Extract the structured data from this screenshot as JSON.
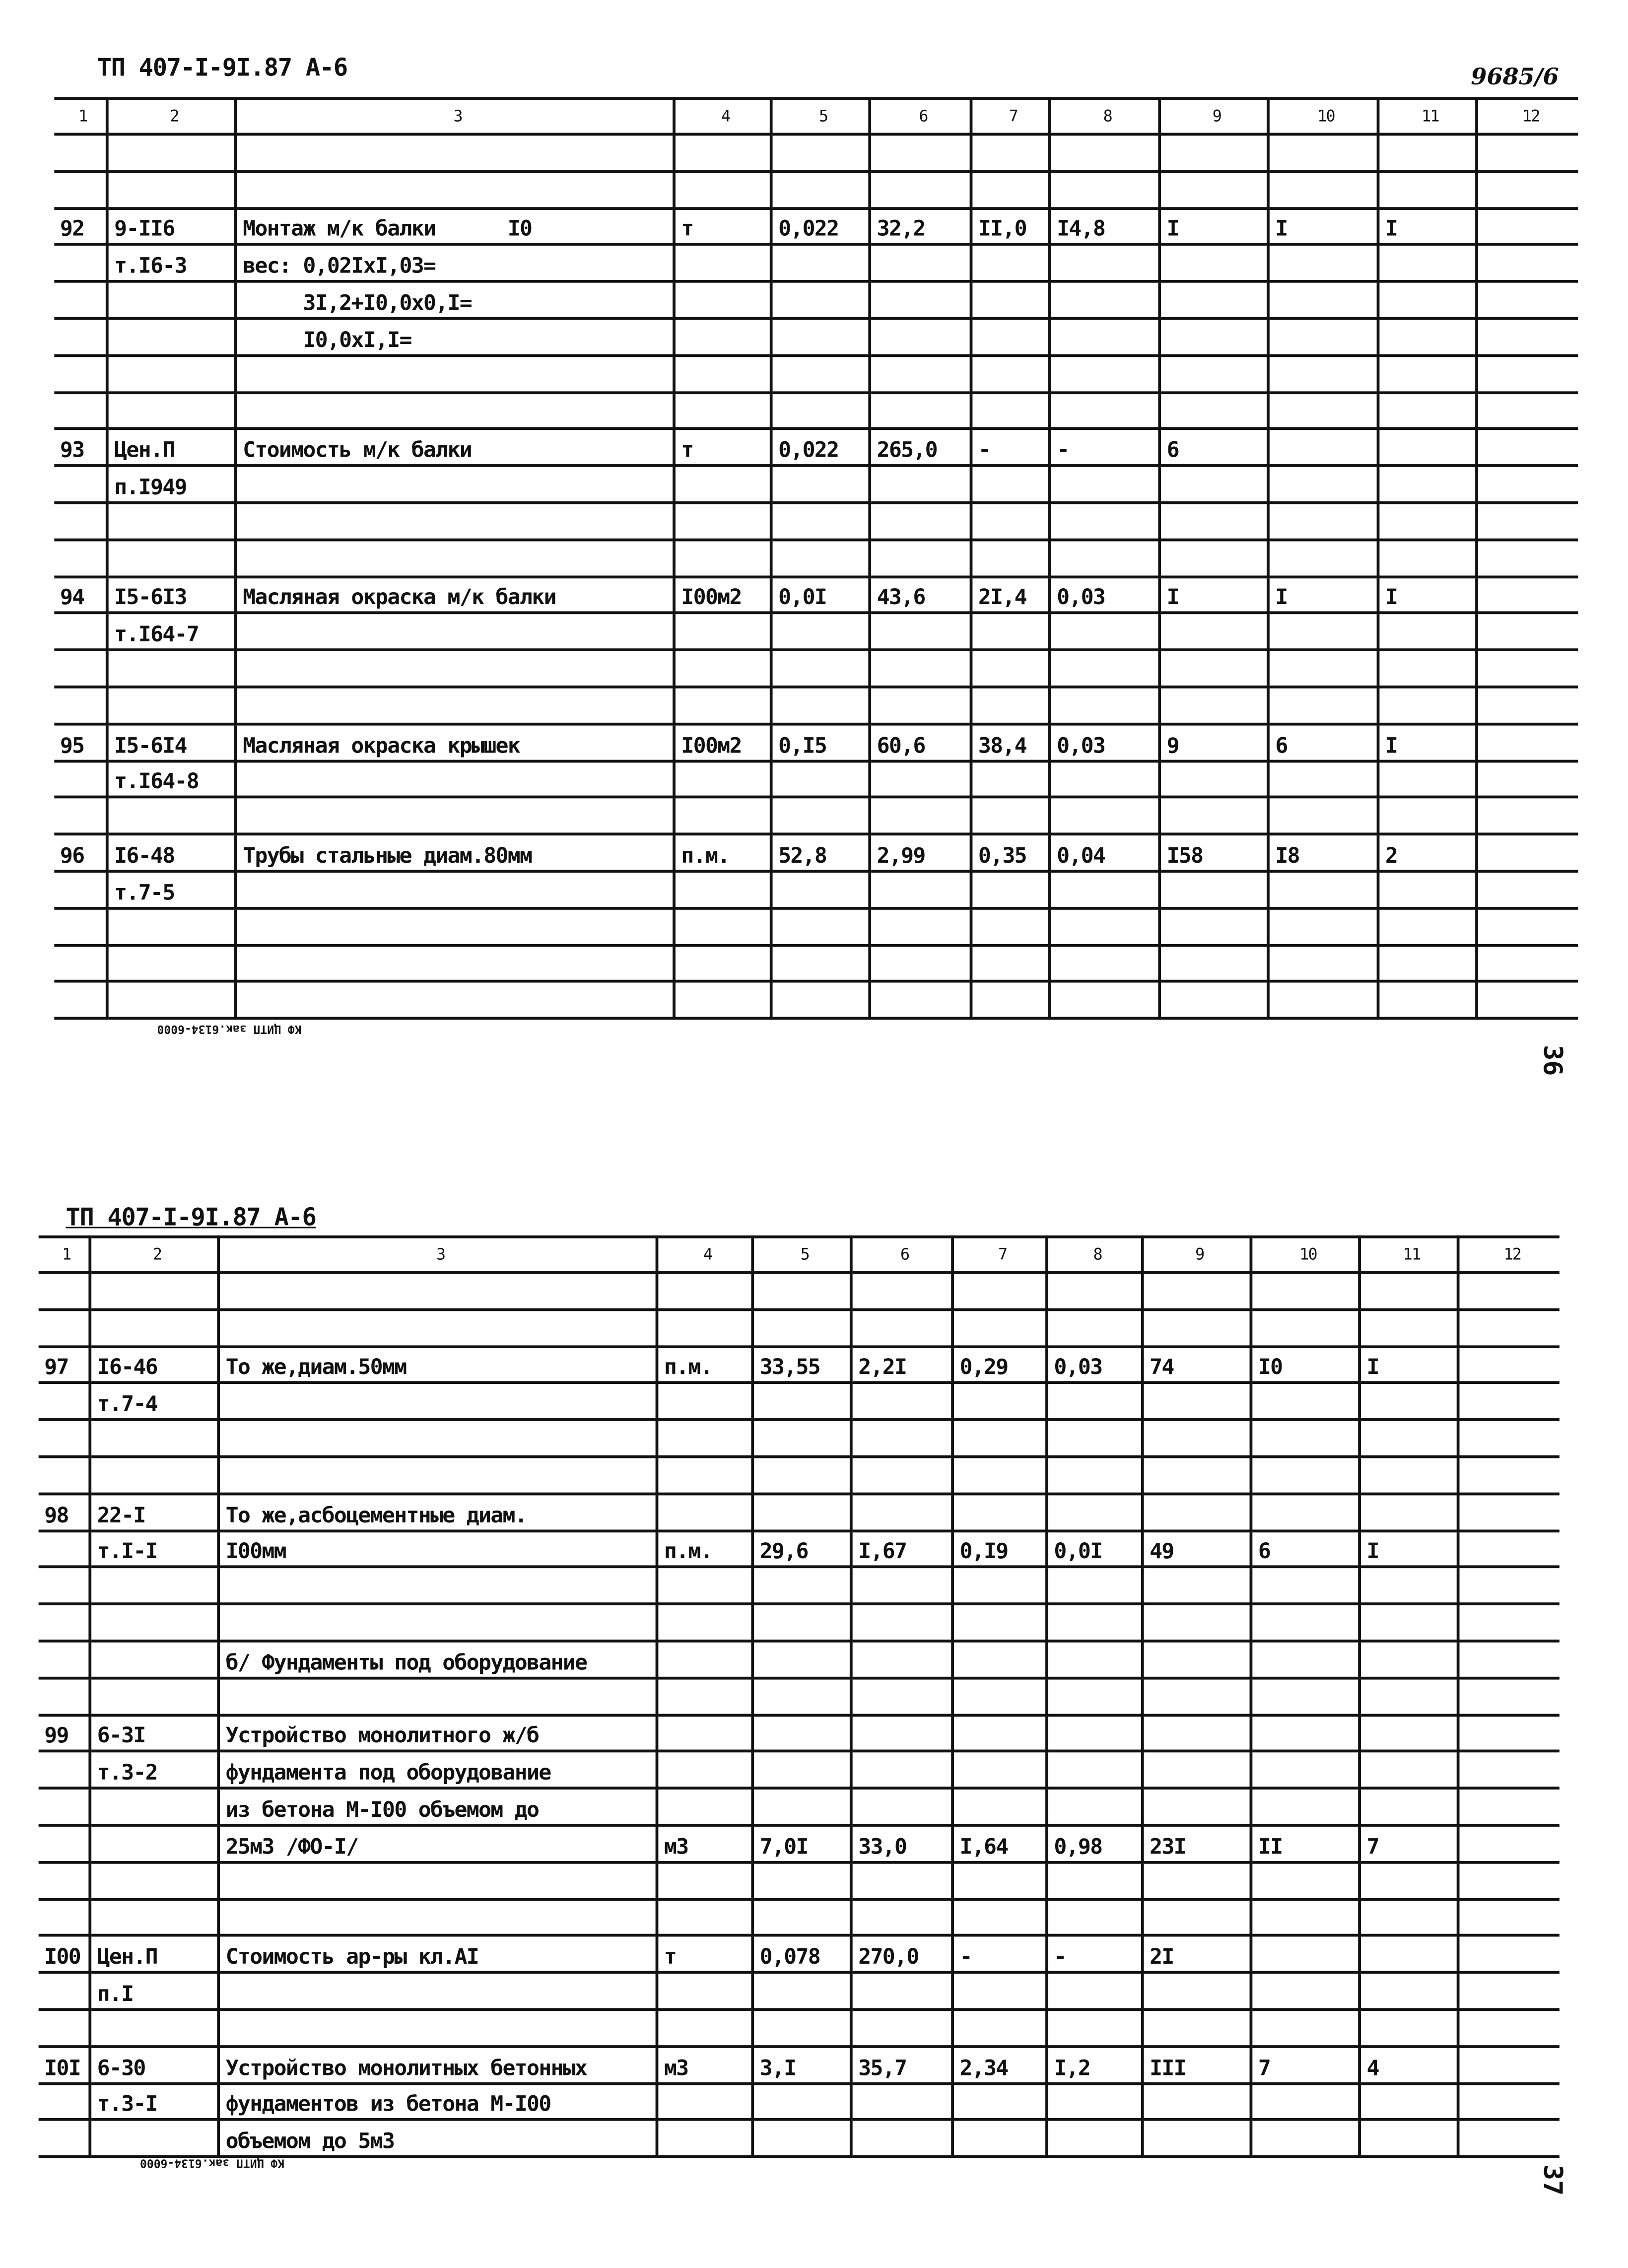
{
  "pages": [
    {
      "doc_code": "ТП 407-I-9I.87 А-6",
      "inventory_number": "9685/6",
      "page_number": "36",
      "footer": "КФ ЦИТП зак.6134-6000",
      "columns": [
        "1",
        "2",
        "3",
        "4",
        "5",
        "6",
        "7",
        "8",
        "9",
        "10",
        "11",
        "12"
      ],
      "rows": [
        [
          "",
          "",
          "",
          "",
          "",
          "",
          "",
          "",
          "",
          "",
          "",
          ""
        ],
        [
          "",
          "",
          "",
          "",
          "",
          "",
          "",
          "",
          "",
          "",
          "",
          ""
        ],
        [
          "92",
          "9-II6",
          "Монтаж м/к балки      I0",
          "т",
          "0,022",
          "32,2",
          "II,0",
          "I4,8",
          "I",
          "I",
          "I",
          ""
        ],
        [
          "",
          "т.I6-3",
          "вес: 0,02IxI,03=",
          "",
          "",
          "",
          "",
          "",
          "",
          "",
          "",
          ""
        ],
        [
          "",
          "",
          "     3I,2+I0,0x0,I=",
          "",
          "",
          "",
          "",
          "",
          "",
          "",
          "",
          ""
        ],
        [
          "",
          "",
          "     I0,0xI,I=",
          "",
          "",
          "",
          "",
          "",
          "",
          "",
          "",
          ""
        ],
        [
          "",
          "",
          "",
          "",
          "",
          "",
          "",
          "",
          "",
          "",
          "",
          ""
        ],
        [
          "",
          "",
          "",
          "",
          "",
          "",
          "",
          "",
          "",
          "",
          "",
          ""
        ],
        [
          "93",
          "Цен.П",
          "Стоимость м/к балки",
          "т",
          "0,022",
          "265,0",
          "-",
          "-",
          "6",
          "",
          "",
          ""
        ],
        [
          "",
          "п.I949",
          "",
          "",
          "",
          "",
          "",
          "",
          "",
          "",
          "",
          ""
        ],
        [
          "",
          "",
          "",
          "",
          "",
          "",
          "",
          "",
          "",
          "",
          "",
          ""
        ],
        [
          "",
          "",
          "",
          "",
          "",
          "",
          "",
          "",
          "",
          "",
          "",
          ""
        ],
        [
          "94",
          "I5-6I3",
          "Масляная окраска м/к балки",
          "I00м2",
          "0,0I",
          "43,6",
          "2I,4",
          "0,03",
          "I",
          "I",
          "I",
          ""
        ],
        [
          "",
          "т.I64-7",
          "",
          "",
          "",
          "",
          "",
          "",
          "",
          "",
          "",
          ""
        ],
        [
          "",
          "",
          "",
          "",
          "",
          "",
          "",
          "",
          "",
          "",
          "",
          ""
        ],
        [
          "",
          "",
          "",
          "",
          "",
          "",
          "",
          "",
          "",
          "",
          "",
          ""
        ],
        [
          "95",
          "I5-6I4",
          "Масляная окраска крышек",
          "I00м2",
          "0,I5",
          "60,6",
          "38,4",
          "0,03",
          "9",
          "6",
          "I",
          ""
        ],
        [
          "",
          "т.I64-8",
          "",
          "",
          "",
          "",
          "",
          "",
          "",
          "",
          "",
          ""
        ],
        [
          "",
          "",
          "",
          "",
          "",
          "",
          "",
          "",
          "",
          "",
          "",
          ""
        ],
        [
          "96",
          "I6-48",
          "Трубы стальные диам.80мм",
          "п.м.",
          "52,8",
          "2,99",
          "0,35",
          "0,04",
          "I58",
          "I8",
          "2",
          ""
        ],
        [
          "",
          "т.7-5",
          "",
          "",
          "",
          "",
          "",
          "",
          "",
          "",
          "",
          ""
        ],
        [
          "",
          "",
          "",
          "",
          "",
          "",
          "",
          "",
          "",
          "",
          "",
          ""
        ],
        [
          "",
          "",
          "",
          "",
          "",
          "",
          "",
          "",
          "",
          "",
          "",
          ""
        ],
        [
          "",
          "",
          "",
          "",
          "",
          "",
          "",
          "",
          "",
          "",
          "",
          ""
        ]
      ]
    },
    {
      "doc_code": "ТП 407-I-9I.87 А-6",
      "page_number": "37",
      "footer": "КФ ЦИТП зак.6134-6000",
      "columns": [
        "1",
        "2",
        "3",
        "4",
        "5",
        "6",
        "7",
        "8",
        "9",
        "10",
        "11",
        "12"
      ],
      "rows": [
        [
          "",
          "",
          "",
          "",
          "",
          "",
          "",
          "",
          "",
          "",
          "",
          ""
        ],
        [
          "",
          "",
          "",
          "",
          "",
          "",
          "",
          "",
          "",
          "",
          "",
          ""
        ],
        [
          "97",
          "I6-46",
          "То же,диам.50мм",
          "п.м.",
          "33,55",
          "2,2I",
          "0,29",
          "0,03",
          "74",
          "I0",
          "I",
          ""
        ],
        [
          "",
          "т.7-4",
          "",
          "",
          "",
          "",
          "",
          "",
          "",
          "",
          "",
          ""
        ],
        [
          "",
          "",
          "",
          "",
          "",
          "",
          "",
          "",
          "",
          "",
          "",
          ""
        ],
        [
          "",
          "",
          "",
          "",
          "",
          "",
          "",
          "",
          "",
          "",
          "",
          ""
        ],
        [
          "98",
          "22-I",
          "То же,асбоцементные диам.",
          "",
          "",
          "",
          "",
          "",
          "",
          "",
          "",
          ""
        ],
        [
          "",
          "т.I-I",
          "I00мм",
          "п.м.",
          "29,6",
          "I,67",
          "0,I9",
          "0,0I",
          "49",
          "6",
          "I",
          ""
        ],
        [
          "",
          "",
          "",
          "",
          "",
          "",
          "",
          "",
          "",
          "",
          "",
          ""
        ],
        [
          "",
          "",
          "",
          "",
          "",
          "",
          "",
          "",
          "",
          "",
          "",
          ""
        ],
        [
          "",
          "",
          "б/ Фундаменты под оборудование",
          "",
          "",
          "",
          "",
          "",
          "",
          "",
          "",
          ""
        ],
        [
          "",
          "",
          "",
          "",
          "",
          "",
          "",
          "",
          "",
          "",
          "",
          ""
        ],
        [
          "99",
          "6-3I",
          "Устройство монолитного ж/б",
          "",
          "",
          "",
          "",
          "",
          "",
          "",
          "",
          ""
        ],
        [
          "",
          "т.3-2",
          "фундамента под оборудование",
          "",
          "",
          "",
          "",
          "",
          "",
          "",
          "",
          ""
        ],
        [
          "",
          "",
          "из бетона М-I00 объемом до",
          "",
          "",
          "",
          "",
          "",
          "",
          "",
          "",
          ""
        ],
        [
          "",
          "",
          "25м3 /ФО-I/",
          "м3",
          "7,0I",
          "33,0",
          "I,64",
          "0,98",
          "23I",
          "II",
          "7",
          ""
        ],
        [
          "",
          "",
          "",
          "",
          "",
          "",
          "",
          "",
          "",
          "",
          "",
          ""
        ],
        [
          "",
          "",
          "",
          "",
          "",
          "",
          "",
          "",
          "",
          "",
          "",
          ""
        ],
        [
          "I00",
          "Цен.П",
          "Стоимость ар-ры кл.АI",
          "т",
          "0,078",
          "270,0",
          "-",
          "-",
          "2I",
          "",
          "",
          ""
        ],
        [
          "",
          "п.I",
          "",
          "",
          "",
          "",
          "",
          "",
          "",
          "",
          "",
          ""
        ],
        [
          "",
          "",
          "",
          "",
          "",
          "",
          "",
          "",
          "",
          "",
          "",
          ""
        ],
        [
          "I0I",
          "6-30",
          "Устройство монолитных бетонных",
          "м3",
          "3,I",
          "35,7",
          "2,34",
          "I,2",
          "III",
          "7",
          "4",
          ""
        ],
        [
          "",
          "т.3-I",
          "фундаментов из бетона М-I00",
          "",
          "",
          "",
          "",
          "",
          "",
          "",
          "",
          ""
        ],
        [
          "",
          "",
          "объемом до 5м3",
          "",
          "",
          "",
          "",
          "",
          "",
          "",
          "",
          ""
        ]
      ]
    }
  ]
}
